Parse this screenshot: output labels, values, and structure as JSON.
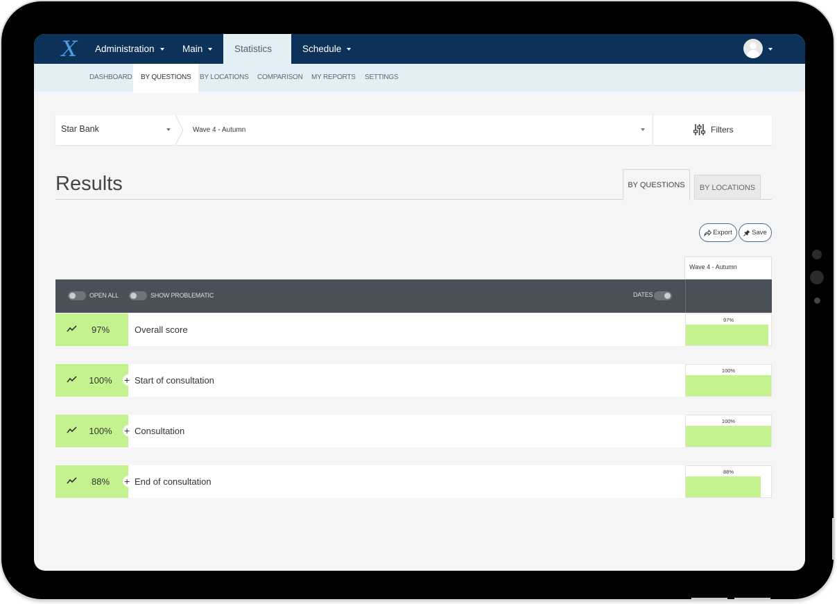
{
  "app": {
    "logo_text": "X",
    "nav": [
      {
        "label": "Administration",
        "has_caret": true,
        "active": false
      },
      {
        "label": "Main",
        "has_caret": true,
        "active": false
      },
      {
        "label": "Statistics",
        "has_caret": true,
        "active": true
      },
      {
        "label": "Schedule",
        "has_caret": true,
        "active": false
      }
    ],
    "subnav": [
      {
        "label": "DASHBOARD",
        "active": false
      },
      {
        "label": "BY QUESTIONS",
        "active": true
      },
      {
        "label": "BY LOCATIONS",
        "active": false
      },
      {
        "label": "COMPARISON",
        "active": false
      },
      {
        "label": "MY REPORTS",
        "active": false
      },
      {
        "label": "SETTINGS",
        "active": false
      }
    ]
  },
  "filterbar": {
    "company": "Star Bank",
    "wave": "Wave 4 - Autumn",
    "filters_label": "Filters",
    "filters_icon": "sliders-icon"
  },
  "results": {
    "title": "Results",
    "tabs": {
      "by_questions": "BY QUESTIONS",
      "by_locations": "BY LOCATIONS"
    },
    "export_label": "Export",
    "save_label": "Save",
    "wave_column": "Wave 4 - Autumn",
    "controls": {
      "open_all": "OPEN ALL",
      "show_problematic": "SHOW PROBLEMATIC",
      "dates": "DATES"
    },
    "rows": [
      {
        "score": "97%",
        "label": "Overall score",
        "expandable": false,
        "bar_pct": "97%",
        "bar_value": 0.97
      },
      {
        "score": "100%",
        "label": "Start of consultation",
        "expandable": true,
        "bar_pct": "100%",
        "bar_value": 1.0
      },
      {
        "score": "100%",
        "label": "Consultation",
        "expandable": true,
        "bar_pct": "100%",
        "bar_value": 1.0
      },
      {
        "score": "88%",
        "label": "End of consultation",
        "expandable": true,
        "bar_pct": "88%",
        "bar_value": 0.88
      }
    ]
  },
  "colors": {
    "nav_bg": "#0c3259",
    "subnav_bg": "#e4eef5",
    "score_green": "#c4f28e",
    "control_bar": "#4a5058"
  }
}
